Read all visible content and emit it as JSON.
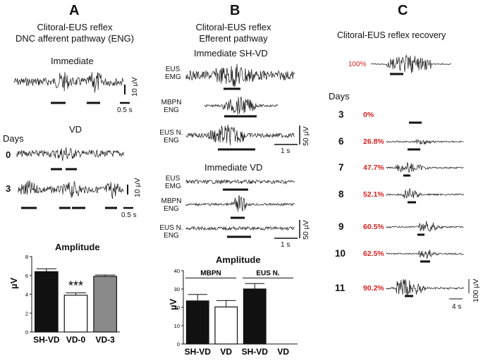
{
  "panels": {
    "A": {
      "letter": "A",
      "title_line1": "Clitoral-EUS reflex",
      "title_line2": "DNC afferent pathway (ENG)",
      "immediate_label": "Immediate",
      "scale_uv": "10 µV",
      "scale_s": "0.5 s",
      "vd_label": "VD",
      "days_label": "Days",
      "day0": "0",
      "day3": "3",
      "scale_uv_2": "10 µV",
      "scale_s_2": "0.5 s"
    },
    "B": {
      "letter": "B",
      "title_line1": "Clitoral-EUS reflex",
      "title_line2": "Efferent pathway",
      "shvd_label": "Immediate SH-VD",
      "vd_label": "Immediate VD",
      "eus_emg_1": "EUS",
      "eus_emg_2": "EMG",
      "mbpn_1": "MBPN",
      "mbpn_2": "ENG",
      "eusn_1": "EUS N.",
      "eusn_2": "ENG",
      "scale_uv": "50 µV",
      "scale_s": "1 s",
      "scale_uv_2": "50 µV",
      "scale_s_2": "1 s"
    },
    "C": {
      "letter": "C",
      "title": "Clitoral-EUS reflex recovery",
      "baseline_pct": "100%",
      "days_label": "Days",
      "rows": [
        {
          "day": "3",
          "pct": "0%"
        },
        {
          "day": "6",
          "pct": "26.8%"
        },
        {
          "day": "7",
          "pct": "47.7%"
        },
        {
          "day": "8",
          "pct": "52.1%"
        },
        {
          "day": "9",
          "pct": "60.5%"
        },
        {
          "day": "10",
          "pct": "62.5%"
        },
        {
          "day": "11",
          "pct": "90.2%"
        }
      ],
      "scale_uv": "100 µV",
      "scale_s": "4 s"
    }
  },
  "chart_data": [
    {
      "type": "bar",
      "title": "Amplitude",
      "ylabel": "µV",
      "xlabel": "",
      "categories": [
        "SH-VD",
        "VD-0",
        "VD-3"
      ],
      "values": [
        6.4,
        3.9,
        5.9
      ],
      "errors": [
        0.3,
        0.25,
        0.15
      ],
      "ylim": [
        0,
        8
      ],
      "yticks": [
        "0",
        "2",
        "4",
        "6",
        "8"
      ],
      "annotation": "***",
      "colors": [
        "#111111",
        "#ffffff",
        "#8a8a8a"
      ]
    },
    {
      "type": "bar",
      "title": "Amplitude",
      "ylabel": "µV",
      "xlabel": "",
      "categories": [
        "SH-VD",
        "VD",
        "SH-VD",
        "VD"
      ],
      "values": [
        23.5,
        20.2,
        30.0,
        0
      ],
      "errors": [
        3.5,
        3.5,
        3.0,
        0
      ],
      "ylim": [
        0,
        40
      ],
      "yticks": [
        "0",
        "10",
        "20",
        "30",
        "40"
      ],
      "group_labels": [
        "MBPN",
        "EUS N."
      ],
      "colors": [
        "#111111",
        "#ffffff",
        "#111111",
        "#ffffff"
      ]
    }
  ]
}
